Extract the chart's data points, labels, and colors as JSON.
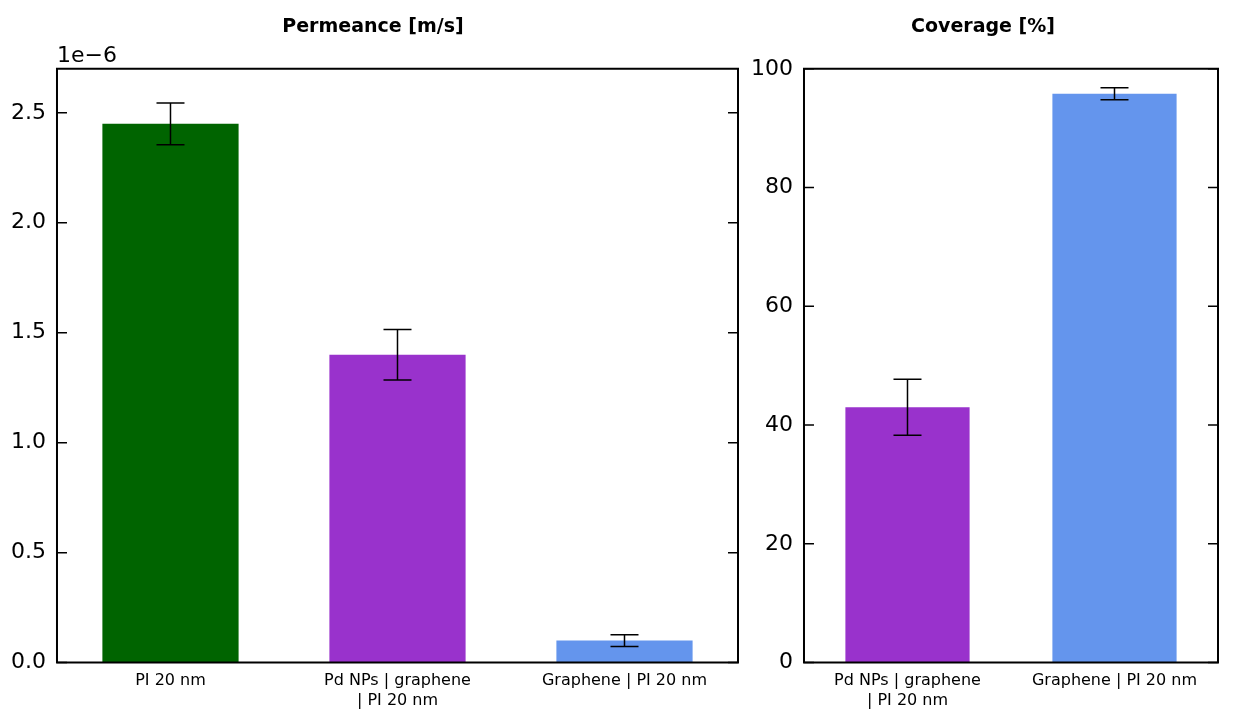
{
  "chart_data": [
    {
      "type": "bar",
      "title": "Permeance [m/s]",
      "categories": [
        "PI 20 nm",
        "Pd NPs | graphene\n| PI 20 nm",
        "Graphene | PI 20 nm"
      ],
      "values": [
        2.45,
        1.4,
        0.1
      ],
      "colors": [
        "#006400",
        "#9932cc",
        "#6495ed"
      ],
      "errors": [
        0.095,
        0.115,
        0.027
      ],
      "ylim": [
        0,
        2.7
      ],
      "yticks": [
        {
          "value": 0,
          "label": "0.0"
        },
        0.5,
        {
          "value": 1,
          "label": "1.0"
        },
        1.5,
        {
          "value": 2,
          "label": "2.0"
        },
        2.5
      ],
      "annotations": [
        "1e−6"
      ],
      "grid": false,
      "legend": false
    },
    {
      "type": "bar",
      "title": "Coverage [%]",
      "categories": [
        "Pd NPs | graphene\n| PI 20 nm",
        "Graphene | PI 20 nm"
      ],
      "values": [
        43,
        95.8
      ],
      "colors": [
        "#9932cc",
        "#6495ed"
      ],
      "errors": [
        4.7,
        1.0
      ],
      "ylim": [
        0,
        100
      ],
      "yticks": [
        0,
        20,
        40,
        60,
        80,
        100
      ],
      "grid": false,
      "legend": false
    }
  ]
}
